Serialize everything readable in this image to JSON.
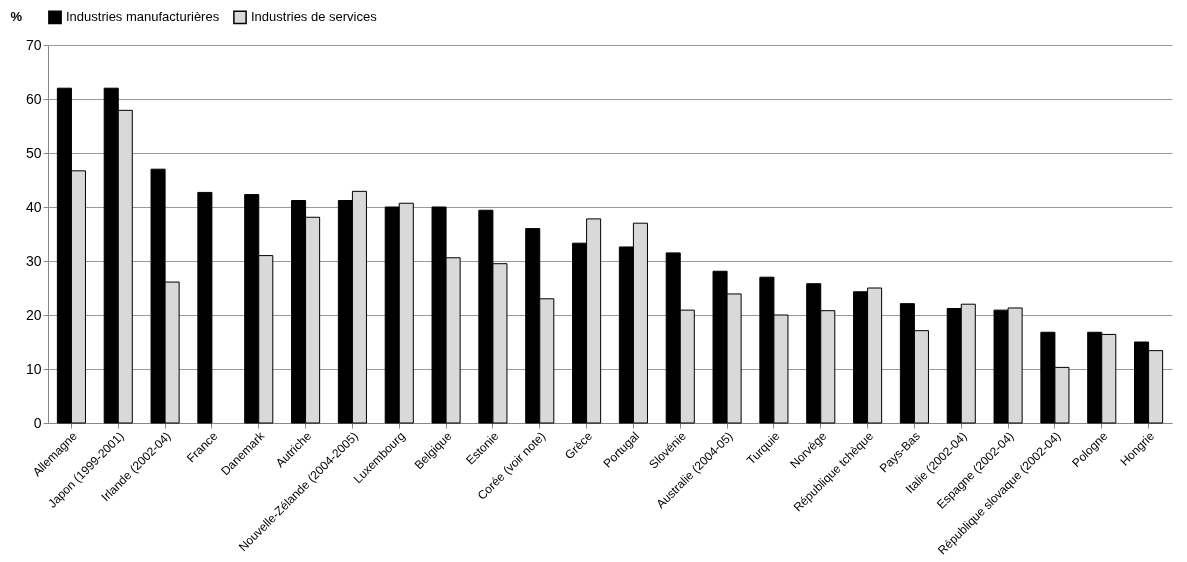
{
  "chart_data": {
    "type": "bar",
    "ylabel": "%",
    "categories": [
      "Allemagne",
      "Japon (1999-2001)",
      "Irlande (2002-04)",
      "France",
      "Danemark",
      "Autriche",
      "Nouvelle-Zélande (2004-2005)",
      "Luxembourg",
      "Belgique",
      "Estonie",
      "Corée (voir note)",
      "Grèce",
      "Portugal",
      "Slovénie",
      "Australie (2004-05)",
      "Turquie",
      "Norvège",
      "République tchèque",
      "Pays-Bas",
      "Italie (2002-04)",
      "Espagne (2002-04)",
      "République slovaque (2002-04)",
      "Pologne",
      "Hongrie"
    ],
    "series": [
      {
        "name": "Industries manufacturières",
        "color": "#000000",
        "values": [
          62,
          62,
          47,
          42.7,
          42.3,
          41.2,
          41.2,
          40,
          40,
          39.4,
          36,
          33.3,
          32.6,
          31.5,
          28.1,
          27,
          25.8,
          24.3,
          22.1,
          21.2,
          20.9,
          16.8,
          16.8,
          15
        ]
      },
      {
        "name": "Industries de services",
        "color": "#d9d9d9",
        "values": [
          46.7,
          57.9,
          26.1,
          null,
          31,
          38.1,
          42.9,
          40.7,
          30.6,
          29.5,
          23,
          37.8,
          37,
          20.9,
          23.9,
          20,
          20.8,
          25,
          17.1,
          22,
          21.3,
          10.3,
          16.4,
          13.4
        ]
      }
    ],
    "ylim": [
      0,
      70
    ],
    "yticks": [
      0,
      10,
      20,
      30,
      40,
      50,
      60,
      70
    ],
    "grid": "y",
    "legend": "top"
  }
}
